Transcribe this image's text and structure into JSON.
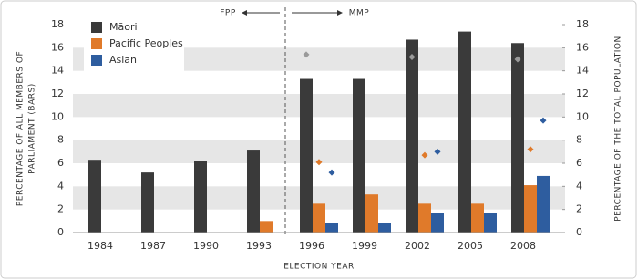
{
  "chart_data": {
    "type": "bar",
    "categories": [
      "1984",
      "1987",
      "1990",
      "1993",
      "1996",
      "1999",
      "2002",
      "2005",
      "2008"
    ],
    "series": [
      {
        "name": "Māori",
        "color": "#3a3a3a",
        "values": [
          6.3,
          5.2,
          6.2,
          7.1,
          13.3,
          13.3,
          16.7,
          17.4,
          16.4
        ],
        "population_color": "#9a9a9a",
        "population_values": [
          null,
          null,
          null,
          null,
          15.4,
          null,
          15.2,
          null,
          15.0
        ]
      },
      {
        "name": "Pacific Peoples",
        "color": "#e07a2a",
        "values": [
          null,
          null,
          null,
          1.0,
          2.5,
          3.3,
          2.5,
          2.5,
          4.1
        ],
        "population_color": "#e07a2a",
        "population_values": [
          null,
          null,
          null,
          null,
          6.1,
          null,
          6.7,
          null,
          7.2
        ]
      },
      {
        "name": "Asian",
        "color": "#2e5d9f",
        "values": [
          null,
          null,
          null,
          null,
          0.8,
          0.8,
          1.7,
          1.7,
          4.9
        ],
        "population_color": "#2e5d9f",
        "population_values": [
          null,
          null,
          null,
          null,
          5.2,
          null,
          7.0,
          null,
          9.7
        ]
      }
    ],
    "ylim": [
      0,
      18
    ],
    "yticks": [
      0,
      2,
      4,
      6,
      8,
      10,
      12,
      14,
      16,
      18
    ],
    "y2lim": [
      0,
      18
    ],
    "y2ticks": [
      0,
      2,
      4,
      6,
      8,
      10,
      12,
      14,
      16,
      18
    ],
    "grid": true,
    "x_label": "ELECTION YEAR",
    "y_label": [
      "PERCENTAGE OF ALL MEMBERS OF",
      "PARLIAMENT (BARS)"
    ],
    "y2_label": "PERCENTAGE OF THE TOTAL POPULATION",
    "annotations": {
      "left": "FPP",
      "right": "MMP"
    },
    "legend": "top-left"
  }
}
